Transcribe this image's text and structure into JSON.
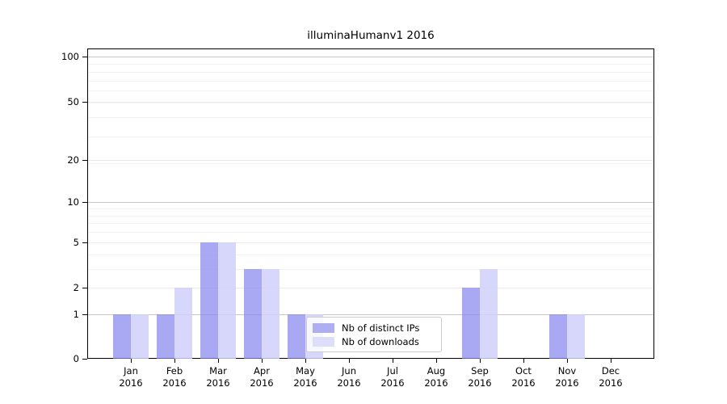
{
  "chart_data": {
    "type": "bar",
    "title": "illuminaHumanv1 2016",
    "x_categories": [
      {
        "month": "Jan",
        "year": "2016"
      },
      {
        "month": "Feb",
        "year": "2016"
      },
      {
        "month": "Mar",
        "year": "2016"
      },
      {
        "month": "Apr",
        "year": "2016"
      },
      {
        "month": "May",
        "year": "2016"
      },
      {
        "month": "Jun",
        "year": "2016"
      },
      {
        "month": "Jul",
        "year": "2016"
      },
      {
        "month": "Aug",
        "year": "2016"
      },
      {
        "month": "Sep",
        "year": "2016"
      },
      {
        "month": "Oct",
        "year": "2016"
      },
      {
        "month": "Nov",
        "year": "2016"
      },
      {
        "month": "Dec",
        "year": "2016"
      }
    ],
    "series": [
      {
        "name": "Nb of distinct IPs",
        "color": "rgba(136,136,238,0.72)",
        "legend_color": "#aeaef1",
        "values": [
          1,
          1,
          5,
          3,
          1,
          0,
          0,
          0,
          2,
          0,
          1,
          0
        ]
      },
      {
        "name": "Nb of downloads",
        "color": "rgba(208,208,250,0.85)",
        "legend_color": "#dedefa",
        "values": [
          1,
          2,
          5,
          3,
          1,
          0,
          0,
          0,
          3,
          0,
          1,
          0
        ]
      }
    ],
    "y_axis": {
      "scale": "log1p",
      "ticks": [
        0,
        1,
        2,
        5,
        10,
        20,
        50,
        100
      ],
      "decade_ticks": [
        1,
        10,
        100
      ],
      "minor_ticks": [
        3,
        4,
        6,
        7,
        8,
        9,
        19,
        29,
        39,
        49,
        59,
        69,
        79,
        89
      ],
      "range": [
        0,
        100
      ]
    },
    "legend_position": "lower center",
    "grid": "on",
    "colors": {
      "axis": "#000000",
      "grid_decade": "#c6c6c6",
      "grid_major": "#ebebeb",
      "grid_minor": "#f3f3f3",
      "legend_border": "#cccccc"
    }
  }
}
